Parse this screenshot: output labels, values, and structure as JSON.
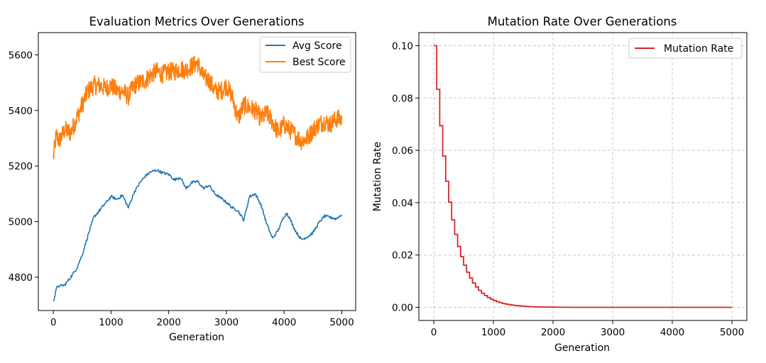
{
  "chart_data": [
    {
      "type": "line",
      "title": "Evaluation Metrics Over Generations",
      "xlabel": "Generation",
      "ylabel": "",
      "xlim": [
        -260,
        5240
      ],
      "ylim": [
        4680,
        5680
      ],
      "xticks": [
        0,
        1000,
        2000,
        3000,
        4000,
        5000
      ],
      "yticks": [
        4800,
        5000,
        5200,
        5400,
        5600
      ],
      "grid": false,
      "legend_position": "top-right",
      "series": [
        {
          "name": "Avg Score",
          "color": "#1f77b4",
          "x": [
            0,
            50,
            100,
            200,
            300,
            400,
            500,
            600,
            700,
            800,
            900,
            1000,
            1100,
            1200,
            1300,
            1400,
            1500,
            1600,
            1700,
            1800,
            1900,
            2000,
            2100,
            2200,
            2300,
            2400,
            2500,
            2600,
            2700,
            2800,
            2900,
            3000,
            3100,
            3200,
            3300,
            3400,
            3500,
            3600,
            3700,
            3800,
            3900,
            4000,
            4050,
            4100,
            4200,
            4300,
            4400,
            4500,
            4600,
            4700,
            4800,
            4900,
            5000
          ],
          "values": [
            4710,
            4760,
            4768,
            4772,
            4800,
            4830,
            4880,
            4950,
            5015,
            5040,
            5065,
            5090,
            5080,
            5095,
            5050,
            5105,
            5140,
            5165,
            5180,
            5185,
            5175,
            5170,
            5150,
            5160,
            5120,
            5140,
            5145,
            5120,
            5130,
            5100,
            5085,
            5070,
            5050,
            5040,
            5005,
            5090,
            5100,
            5060,
            4990,
            4940,
            4970,
            5020,
            5030,
            5010,
            4965,
            4935,
            4945,
            4960,
            4995,
            5020,
            5015,
            5010,
            5025
          ]
        },
        {
          "name": "Best Score",
          "color": "#ff7f0e",
          "x": [
            0,
            50,
            100,
            200,
            300,
            400,
            500,
            600,
            700,
            800,
            900,
            1000,
            1100,
            1200,
            1300,
            1400,
            1500,
            1600,
            1700,
            1800,
            1900,
            2000,
            2100,
            2200,
            2300,
            2400,
            2500,
            2600,
            2700,
            2800,
            2900,
            3000,
            3100,
            3200,
            3300,
            3400,
            3500,
            3600,
            3700,
            3800,
            3900,
            4000,
            4100,
            4200,
            4300,
            4400,
            4500,
            4600,
            4700,
            4800,
            4900,
            5000
          ],
          "values": [
            5230,
            5310,
            5290,
            5330,
            5320,
            5370,
            5420,
            5470,
            5490,
            5490,
            5480,
            5490,
            5470,
            5470,
            5450,
            5490,
            5500,
            5510,
            5530,
            5540,
            5530,
            5540,
            5540,
            5550,
            5545,
            5560,
            5570,
            5520,
            5510,
            5470,
            5470,
            5490,
            5450,
            5370,
            5420,
            5410,
            5400,
            5370,
            5390,
            5360,
            5320,
            5350,
            5330,
            5310,
            5290,
            5300,
            5330,
            5350,
            5360,
            5350,
            5370,
            5370
          ]
        }
      ]
    },
    {
      "type": "line",
      "title": "Mutation Rate Over Generations",
      "xlabel": "Generation",
      "ylabel": "Mutation Rate",
      "xlim": [
        -250,
        5250
      ],
      "ylim": [
        -0.005,
        0.105
      ],
      "xticks": [
        0,
        1000,
        2000,
        3000,
        4000,
        5000
      ],
      "yticks": [
        0.0,
        0.02,
        0.04,
        0.06,
        0.08,
        0.1
      ],
      "grid": true,
      "legend_position": "top-right",
      "series": [
        {
          "name": "Mutation Rate",
          "color": "#d62728",
          "step": 50,
          "x0": 0,
          "x_end": 5000,
          "initial": 0.1,
          "decay_per_step": 0.8333
        }
      ]
    }
  ],
  "labels": {
    "left_title": "Evaluation Metrics Over Generations",
    "right_title": "Mutation Rate Over Generations",
    "left_xlabel": "Generation",
    "right_xlabel": "Generation",
    "right_ylabel": "Mutation Rate",
    "legend_avg": "Avg Score",
    "legend_best": "Best Score",
    "legend_mut": "Mutation Rate"
  },
  "ticks": {
    "left_x": [
      "0",
      "1000",
      "2000",
      "3000",
      "4000",
      "5000"
    ],
    "left_y": [
      "4800",
      "5000",
      "5200",
      "5400",
      "5600"
    ],
    "right_x": [
      "0",
      "1000",
      "2000",
      "3000",
      "4000",
      "5000"
    ],
    "right_y": [
      "0.00",
      "0.02",
      "0.04",
      "0.06",
      "0.08",
      "0.10"
    ]
  }
}
